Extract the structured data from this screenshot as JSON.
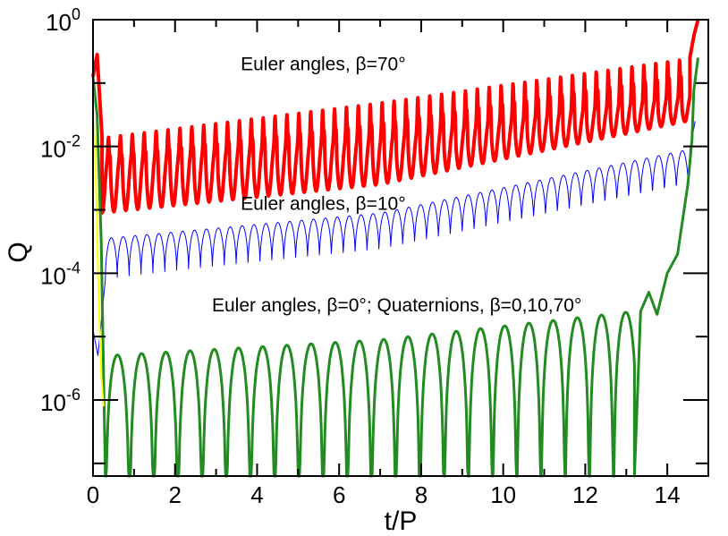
{
  "chart_data": {
    "type": "line",
    "xlabel": "t/P",
    "ylabel": "Q",
    "xlim": [
      0,
      15
    ],
    "ylim_log10": [
      -7.2,
      0
    ],
    "yscale": "log",
    "grid": false,
    "x_ticks": [
      "0",
      "2",
      "4",
      "6",
      "8",
      "10",
      "12",
      "14"
    ],
    "y_ticks": [
      {
        "base": "10",
        "exp": "0"
      },
      {
        "base": "10",
        "exp": "-2"
      },
      {
        "base": "10",
        "exp": "-4"
      },
      {
        "base": "10",
        "exp": "-6"
      }
    ],
    "annotations": [
      {
        "text": "Euler angles, β=70°",
        "x": 3.6,
        "y_log10": -0.8
      },
      {
        "text": "Euler angles, β=10°",
        "x": 3.6,
        "y_log10": -3.0
      },
      {
        "text": "Euler angles, β=0°; Quaternions,  β=0,10,70°",
        "x": 2.9,
        "y_log10": -4.6
      }
    ],
    "series": [
      {
        "color": "#ff0000",
        "width": 4,
        "period": 0.29,
        "start": 0.22,
        "end": 14.55,
        "trough_log10": [
          [
            0.2,
            -3.05
          ],
          [
            7.0,
            -2.6
          ],
          [
            14.5,
            -1.6
          ]
        ],
        "peak_log10": [
          [
            0.2,
            -1.85
          ],
          [
            7.0,
            -1.3
          ],
          [
            14.5,
            -0.6
          ]
        ],
        "dip_log10": [
          [
            0.2,
            -2.2
          ],
          [
            7.0,
            -1.85
          ],
          [
            14.5,
            -1.2
          ]
        ],
        "initial_x": [
          0.0,
          0.1,
          0.22
        ],
        "initial_log10": [
          -0.9,
          -0.55,
          -1.85
        ],
        "final_x": [
          14.55,
          14.65,
          14.75
        ],
        "final_log10": [
          -0.6,
          -0.25,
          0.0
        ]
      },
      {
        "color": "#0000ff",
        "width": 1,
        "period": 0.29,
        "start": 0.3,
        "end": 14.55,
        "trough_log10": [
          [
            0.3,
            -4.1
          ],
          [
            7.0,
            -3.7
          ],
          [
            14.5,
            -2.7
          ]
        ],
        "peak_log10": [
          [
            0.3,
            -3.45
          ],
          [
            7.0,
            -3.05
          ],
          [
            14.5,
            -2.05
          ]
        ],
        "initial_x": [
          0.0,
          0.12,
          0.3
        ],
        "initial_log10": [
          -4.9,
          -5.3,
          -4.1
        ],
        "final_x": [
          14.55,
          14.62,
          14.68
        ],
        "final_log10": [
          -2.05,
          -1.8,
          -1.6
        ]
      },
      {
        "color": "#228b22",
        "width": 3,
        "period": 0.59,
        "start": 0.3,
        "end": 13.2,
        "peak_log10": [
          [
            0.3,
            -5.3
          ],
          [
            7.0,
            -5.05
          ],
          [
            13.2,
            -4.6
          ]
        ],
        "trough_log10": -7.2,
        "initial_x": [
          0.0,
          0.1,
          0.2,
          0.3
        ],
        "initial_log10": [
          -0.9,
          -1.5,
          -3.5,
          -7.2
        ],
        "final_x": [
          13.2,
          13.35,
          13.55,
          13.75,
          14.0,
          14.25,
          14.5,
          14.6,
          14.65,
          14.75
        ],
        "final_log10": [
          -7.2,
          -4.6,
          -4.3,
          -4.65,
          -4.0,
          -3.7,
          -2.6,
          -1.9,
          -1.1,
          -0.6
        ]
      },
      {
        "color": "#ffff00",
        "width": 2,
        "x": [
          0.0,
          0.08,
          0.14,
          0.2,
          0.26
        ],
        "y_log10": [
          -1.1,
          -2.8,
          -4.4,
          -5.6,
          -6.1
        ]
      }
    ]
  }
}
